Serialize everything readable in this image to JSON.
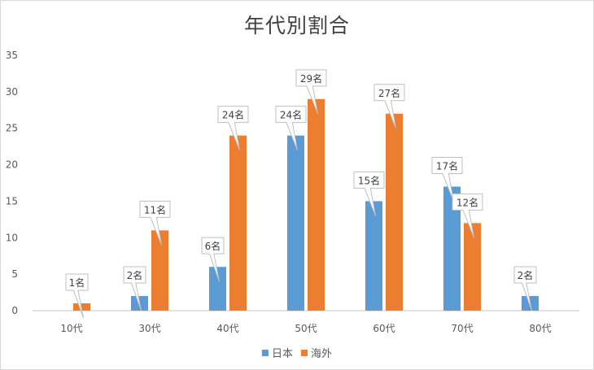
{
  "chart_data": {
    "type": "bar",
    "title": "年代別割合",
    "xlabel": "",
    "ylabel": "",
    "ylim": [
      0,
      35
    ],
    "yticks": [
      0,
      5,
      10,
      15,
      20,
      25,
      30,
      35
    ],
    "grid": false,
    "legend_position": "bottom",
    "categories": [
      "10代",
      "30代",
      "40代",
      "50代",
      "60代",
      "70代",
      "80代"
    ],
    "series": [
      {
        "name": "日本",
        "color": "#5b9bd5",
        "values": [
          0,
          2,
          6,
          24,
          15,
          17,
          2
        ],
        "labels": [
          null,
          "2名",
          "6名",
          "24名",
          "15名",
          "17名",
          "2名"
        ]
      },
      {
        "name": "海外",
        "color": "#ed7d31",
        "values": [
          1,
          11,
          24,
          29,
          27,
          12,
          0
        ],
        "labels": [
          "1名",
          "11名",
          "24名",
          "29名",
          "27名",
          "12名",
          null
        ]
      }
    ]
  },
  "title": "年代別割合",
  "legend": [
    {
      "label": "日本",
      "color": "#5b9bd5"
    },
    {
      "label": "海外",
      "color": "#ed7d31"
    }
  ]
}
